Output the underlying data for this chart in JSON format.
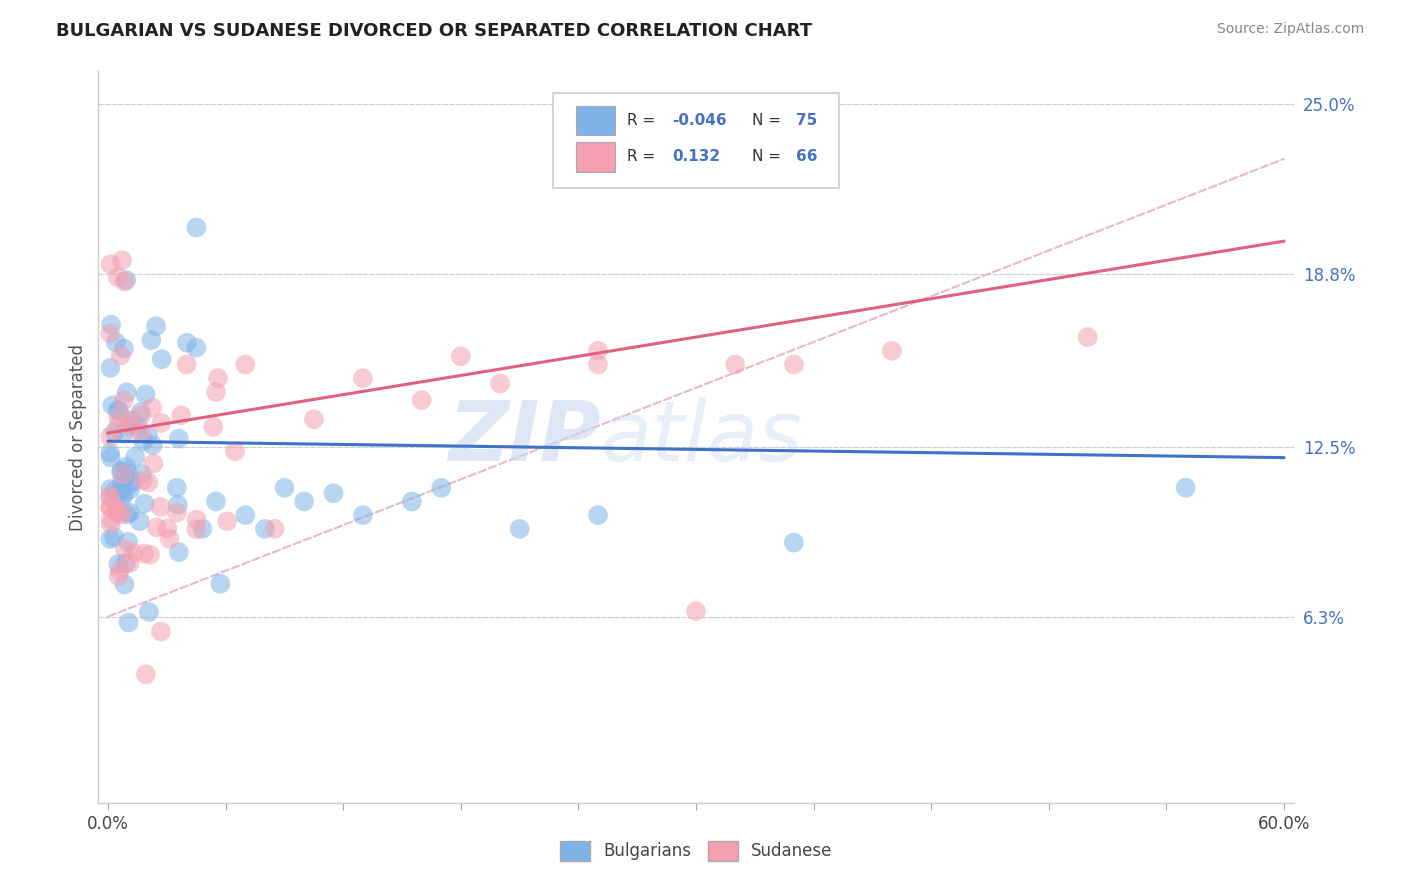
{
  "title": "BULGARIAN VS SUDANESE DIVORCED OR SEPARATED CORRELATION CHART",
  "source": "Source: ZipAtlas.com",
  "ylabel": "Divorced or Separated",
  "xlim": [
    -0.005,
    0.605
  ],
  "ylim": [
    -0.005,
    0.262
  ],
  "xtick_positions": [
    0.0,
    0.06,
    0.12,
    0.18,
    0.24,
    0.3,
    0.36,
    0.42,
    0.48,
    0.54,
    0.6
  ],
  "xtick_labels_show": [
    "0.0%",
    "",
    "",
    "",
    "",
    "",
    "",
    "",
    "",
    "",
    "60.0%"
  ],
  "ytick_values": [
    0.063,
    0.125,
    0.188,
    0.25
  ],
  "ytick_labels": [
    "6.3%",
    "12.5%",
    "18.8%",
    "25.0%"
  ],
  "bulgarian_color": "#7fb3e8",
  "sudanese_color": "#f4a0b0",
  "bulgarian_line_color": "#3f72c8",
  "sudanese_line_color": "#e06080",
  "ref_line_color": "#e0a8b8",
  "watermark_text": "ZIP",
  "watermark_text2": "atlas",
  "legend_label_bulgarian": "Bulgarians",
  "legend_label_sudanese": "Sudanese",
  "blue_trend_x0": 0.0,
  "blue_trend_y0": 0.127,
  "blue_trend_x1": 0.6,
  "blue_trend_y1": 0.121,
  "pink_trend_x0": 0.0,
  "pink_trend_y0": 0.13,
  "pink_trend_x1": 0.6,
  "pink_trend_y1": 0.2,
  "ref_line_x0": 0.0,
  "ref_line_y0": 0.063,
  "ref_line_x1": 0.6,
  "ref_line_y1": 0.23,
  "grid_color": "#d0d0d0",
  "spine_color": "#cccccc",
  "ytick_color": "#4472c4",
  "title_color": "#222222",
  "source_color": "#888888",
  "ylabel_color": "#555555",
  "bg_color": "#ffffff"
}
